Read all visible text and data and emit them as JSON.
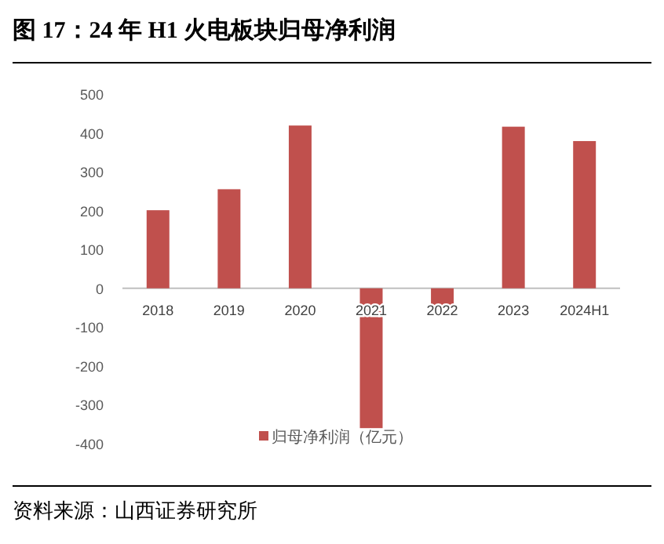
{
  "chart_data": {
    "type": "bar",
    "title": "图 17：24 年 H1 火电板块归母净利润",
    "categories": [
      "2018",
      "2019",
      "2020",
      "2021",
      "2022",
      "2023",
      "2024H1"
    ],
    "series": [
      {
        "name": "归母净利润（亿元）",
        "color": "#c0504d",
        "values": [
          201,
          255,
          419,
          -360,
          -54,
          416,
          379
        ]
      }
    ],
    "ylim": [
      -400,
      500
    ],
    "yticks": [
      -400,
      -300,
      -200,
      -100,
      0,
      100,
      200,
      300,
      400,
      500
    ],
    "grid": false,
    "legend": "bottom",
    "annotations": [
      "资料来源：山西证券研究所"
    ]
  }
}
